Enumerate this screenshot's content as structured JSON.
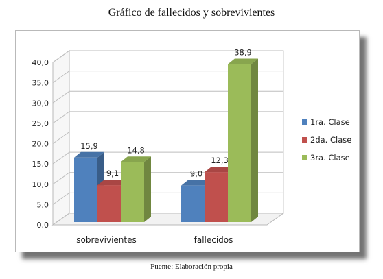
{
  "caption": "Gráfico de fallecidos y sobrevivientes",
  "source": "Fuente: Elaboración propia",
  "chart_data": {
    "type": "bar",
    "title": "",
    "xlabel": "",
    "ylabel": "",
    "categories": [
      "sobrevivientes",
      "fallecidos"
    ],
    "ylim": [
      0,
      40
    ],
    "ytick_labels": [
      "0,0",
      "5,0",
      "10,0",
      "15,0",
      "20,0",
      "25,0",
      "30,0",
      "35,0",
      "40,0"
    ],
    "series": [
      {
        "name": "1ra. Clase",
        "color": "#4f81bd",
        "values": [
          15.9,
          9.0
        ],
        "labels": [
          "15,9",
          "9,0"
        ]
      },
      {
        "name": "2da. Clase",
        "color": "#c0504d",
        "values": [
          9.1,
          12.3
        ],
        "labels": [
          "9,1",
          "12,3"
        ]
      },
      {
        "name": "3ra. Clase",
        "color": "#9bbb59",
        "values": [
          14.8,
          38.9
        ],
        "labels": [
          "14,8",
          "38,9"
        ]
      }
    ],
    "grid": true,
    "legend_position": "right",
    "style": "3d-clustered-column"
  }
}
